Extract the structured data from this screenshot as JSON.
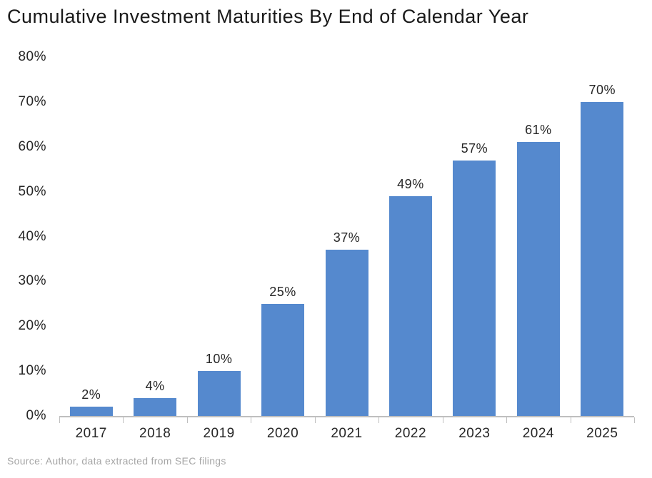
{
  "title": "Cumulative Investment Maturities By End of Calendar Year",
  "source_note": "Source: Author, data extracted from SEC filings",
  "colors": {
    "bar": "#5589CE",
    "axis": "#BFBFBF",
    "title_text": "#1A1A1A",
    "label_text": "#262626",
    "source_text": "#A6A6A6",
    "background": "#FFFFFF"
  },
  "chart_data": {
    "type": "bar",
    "title": "Cumulative Investment Maturities By End of Calendar Year",
    "categories": [
      "2017",
      "2018",
      "2019",
      "2020",
      "2021",
      "2022",
      "2023",
      "2024",
      "2025"
    ],
    "values": [
      2,
      4,
      10,
      25,
      37,
      49,
      57,
      61,
      70
    ],
    "data_labels": [
      "2%",
      "4%",
      "10%",
      "25%",
      "37%",
      "49%",
      "57%",
      "61%",
      "70%"
    ],
    "xlabel": "",
    "ylabel": "",
    "ylim": [
      0,
      80
    ],
    "ytick_interval": 10,
    "ytick_labels": [
      "0%",
      "10%",
      "20%",
      "30%",
      "40%",
      "50%",
      "60%",
      "70%",
      "80%"
    ],
    "grid": false,
    "legend": "none",
    "source": "Source: Author, data extracted from SEC filings"
  }
}
